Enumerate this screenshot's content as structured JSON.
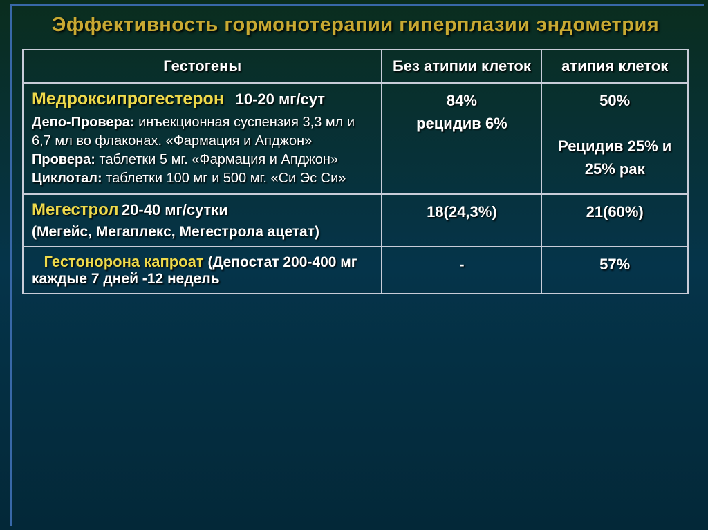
{
  "title": "Эффективность гормонотерапии  гиперплазии эндометрия",
  "headers": {
    "c1": "Гестогены",
    "c2": "Без атипии клеток",
    "c3": "атипия клеток"
  },
  "row1": {
    "name": "Медроксипрогестерон",
    "dose": "10-20 мг/сут",
    "d1a": "Депо-Провера:",
    "d1b": " инъекционная суспензия 3,3 мл и 6,7 мл во флаконах. «Фармация и Апджон»",
    "d2a": "Провера:",
    "d2b": " таблетки 5 мг. «Фармация и Апджон»",
    "d3a": "Циклотал:",
    "d3b": " таблетки 100 мг и 500 мг. «Си Эс Си»",
    "c2a": "84%",
    "c2b": "рецидив  6%",
    "c3a": "50%",
    "c3b": "Рецидив 25% и 25% рак"
  },
  "row2": {
    "name": "Мегестрол",
    "dose": "20-40 мг/сутки",
    "detail": "(Мегейс, Мегаплекс, Мегестрола ацетат)",
    "c2": "18(24,3%)",
    "c3": "21(60%)"
  },
  "row3": {
    "pad": "   ",
    "name": "Гестонорона капроат",
    "bracket": "  (",
    "rest": "Депостат 200-400 мг каждые 7 дней -12 недель",
    "c2": "-",
    "c3": "57%"
  }
}
